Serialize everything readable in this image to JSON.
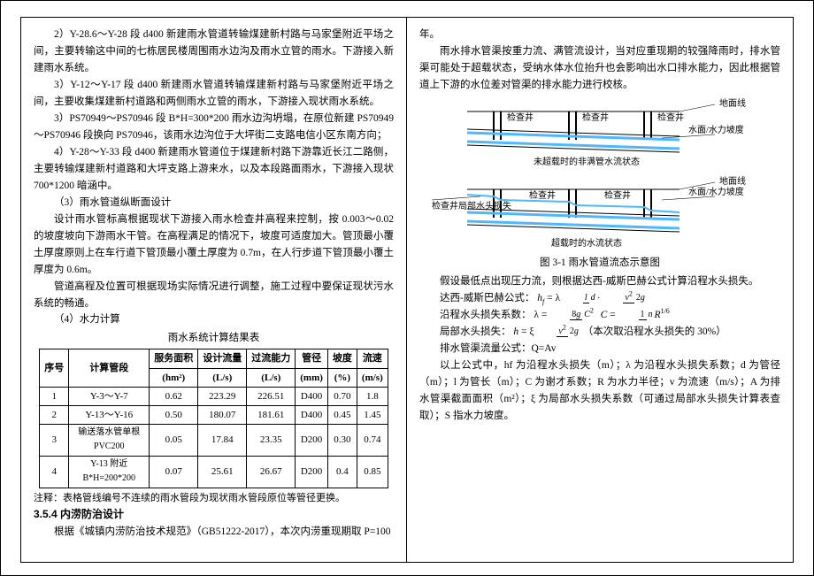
{
  "colors": {
    "text": "#000000",
    "water": "#4db8ff",
    "line": "#000000"
  },
  "left": {
    "p2": "2）Y-28.6～Y-28 段 d400 新建雨水管道转输煤建新村路与马家堡附近平场之间，主要转输这中间的七栋居民楼周围雨水边沟及雨水立管的雨水。下游接入新建雨水系统。",
    "p3": "3）Y-12～Y-17 段 d400 新建雨水管道转输煤建新村路与马家堡附近平场之间，主要收集煤建新村道路和两侧雨水立管的雨水，下游接入现状雨水系统。",
    "p4": "3）PS70949～PS70946 段 B*H=300*200 雨水边沟坍塌，在原位新建 PS70949～PS70946 段换向 PS70946，该雨水边沟位于大坪街二支路电信小区东南方向；",
    "p5": "4）Y-28～Y-33 段 d400 新建雨水管道位于煤建新村路下游靠近长江二路侧，主要转输煤建新村道路和大坪支路上游来水，以及本段路面雨水，下游接入现状 700*1200 暗涵中。",
    "p6": "（3）雨水管道纵断面设计",
    "p7": "设计雨水管标高根据现状下游接入雨水检查井高程来控制，按 0.003～0.02 的坡度坡向下游雨水干管。在高程满足的情况下，坡度可适度加大。管顶最小覆土厚度原则上在车行道下管顶最小覆土厚度为 0.7m，在人行步道下管顶最小覆土厚度为 0.6m。",
    "p8": "管道高程及位置可根据现场实际情况进行调整，施工过程中要保证现状污水系统的畅通。",
    "p9": "（4）水力计算",
    "tableTitle": "雨水系统计算结果表",
    "headers": [
      "序号",
      "计算管段",
      "服务面积",
      "设计流量",
      "过流能力",
      "管径",
      "坡度",
      "流速"
    ],
    "units": [
      "",
      "",
      "(hm²)",
      "(L/s)",
      "(L/s)",
      "(mm)",
      "(%)",
      "(m/s)"
    ],
    "rows": [
      [
        "1",
        "Y-3～Y-7",
        "0.62",
        "223.29",
        "226.51",
        "D400",
        "0.70",
        "1.8"
      ],
      [
        "2",
        "Y-13～Y-16",
        "0.50",
        "180.07",
        "181.61",
        "D400",
        "0.45",
        "1.45"
      ],
      [
        "3",
        "输送落水管单根 PVC200",
        "0.05",
        "17.84",
        "23.35",
        "D200",
        "0.30",
        "0.74"
      ],
      [
        "4",
        "Y-13 附近 B*H=200*200",
        "0.07",
        "25.61",
        "26.67",
        "D200",
        "0.4",
        "0.85"
      ]
    ],
    "tableNote": "注释：表格管线编号不连续的雨水管段为现状雨水管段原位等管径更换。",
    "sec354": "3.5.4 内涝防治设计",
    "p354": "根据《城镇内涝防治技术规范》（GB51222-2017），本次内涝重现期取 P=100"
  },
  "right": {
    "p0": "年。",
    "p1": "雨水排水管渠按重力流、满管流设计，当对应重现期的较强降雨时，排水管渠可能处于超载状态，受纳水体水位抬升也会影响出水口排水能力，因此根据管道上下游的水位差对管渠的排水能力进行校核。",
    "fig": {
      "top": {
        "groundLabel": "地面线",
        "wellLabel": "检查井",
        "flowLabel": "水面/水力坡度",
        "caption": "未超载时的非满管水流状态"
      },
      "bot": {
        "groundLabel": "地面线",
        "wellLabel": "检查井局部水头损失",
        "flowLabel": "水面/水力坡度",
        "caption": "超载时的水流状态"
      },
      "caption": "图 3-1 雨水管道流态示意图"
    },
    "p_assume": "假设最低点出现压力流，则根据达西-威斯巴赫公式计算沿程水头损失。",
    "f1_label": "达西-威斯巴赫公式：",
    "f2_label": "沿程水头损失系数：",
    "f3_label": "局部水头损失：",
    "f3_note": "（本次取沿程水头损失的 30%）",
    "f4_label": "排水管渠流量公式：Q=Av",
    "p_vars": "以上公式中，hf 为沿程水头损失（m）；λ 为沿程水头损失系数；d 为管径（m）；l 为管长（m）；C 为谢才系数；R 为水力半径；v 为流速（m/s）；A 为排水管渠截面面积（m²）；ξ 为局部水头损失系数（可通过局部水头损失计算表查取）；S 指水力坡度。"
  }
}
